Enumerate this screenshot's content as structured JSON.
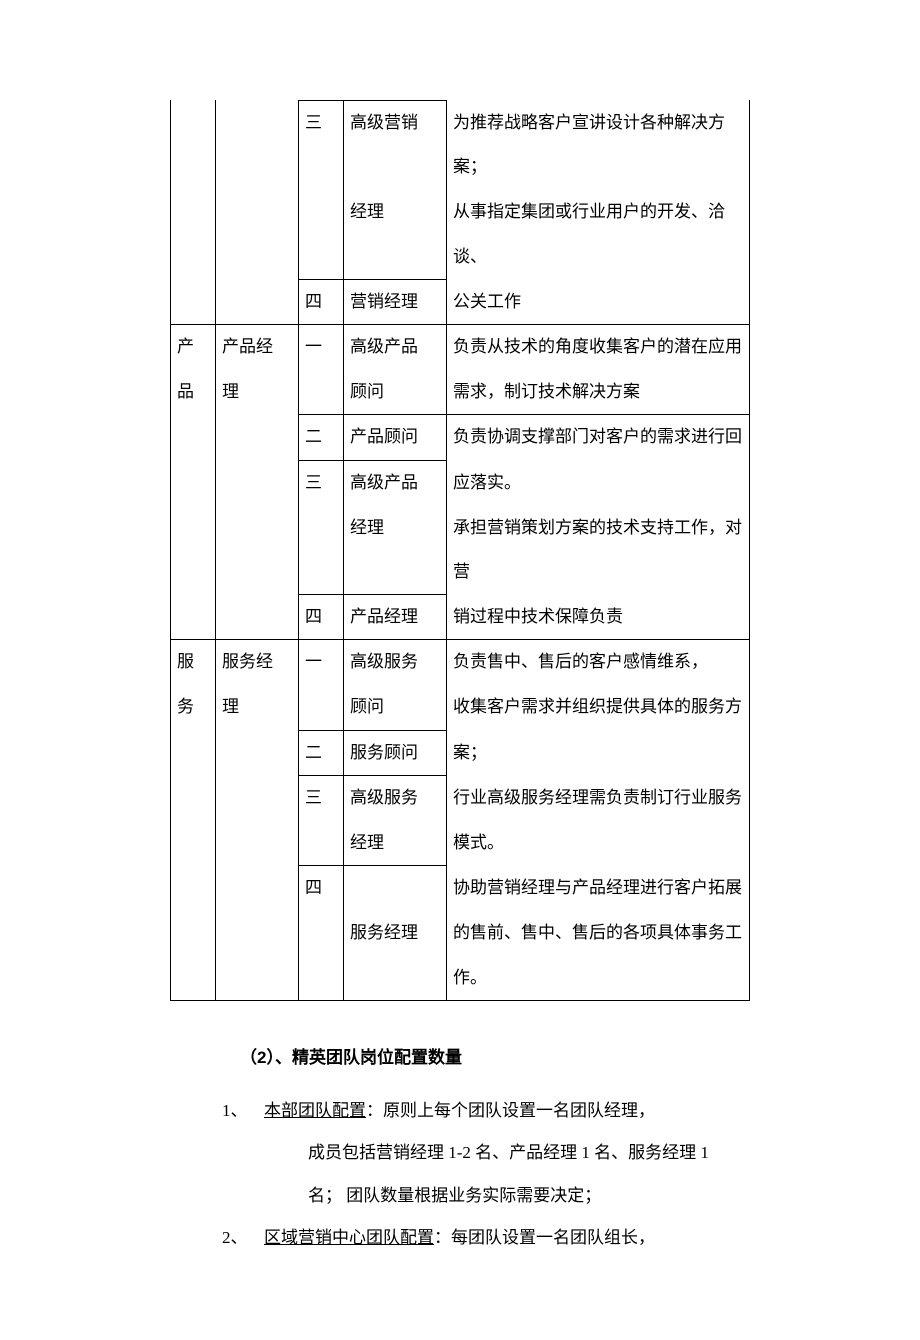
{
  "table": {
    "group_blank": "",
    "r1": {
      "level": "三",
      "title": "高级营销",
      "desc": "为推荐战略客户宣讲设计各种解决方案；"
    },
    "r1b": {
      "title_b": "经理",
      "desc_b": "从事指定集团或行业用户的开发、洽谈、"
    },
    "r2": {
      "level": "四",
      "title": "营销经理",
      "desc": "公关工作"
    },
    "g2": {
      "cat": "产",
      "role": "产品经",
      "level": "一",
      "title": "高级产品",
      "desc": "负责从技术的角度收集客户的潜在应用"
    },
    "g2b": {
      "cat_b": "品",
      "role_b": "理",
      "title_b": "顾问",
      "desc_b": "需求，制订技术解决方案"
    },
    "g2r2": {
      "level": "二",
      "title": "产品顾问",
      "desc": "负责协调支撑部门对客户的需求进行回"
    },
    "g2r3": {
      "level": "三",
      "title": "高级产品",
      "desc": "应落实。"
    },
    "g2r3b": {
      "title_b": "经理",
      "desc_b": "承担营销策划方案的技术支持工作，对营"
    },
    "g2r4": {
      "level": "四",
      "title": "产品经理",
      "desc": "销过程中技术保障负责"
    },
    "g3": {
      "cat": "服",
      "role": "服务经",
      "level": "一",
      "title": "高级服务",
      "desc": "负责售中、售后的客户感情维系，"
    },
    "g3b": {
      "cat_b": "务",
      "role_b": "理",
      "title_b": "顾问",
      "desc_b": "收集客户需求并组织提供具体的服务方"
    },
    "g3r2": {
      "level": "二",
      "title": "服务顾问",
      "desc": "案；"
    },
    "g3r3": {
      "level": "三",
      "title": "高级服务",
      "desc": "行业高级服务经理需负责制订行业服务"
    },
    "g3r3b": {
      "title_b": "经理",
      "desc_b": "模式。"
    },
    "g3r4": {
      "level": "四",
      "title": "服务经理",
      "desc": "协助营销经理与产品经理进行客户拓展",
      "desc_b": "的售前、售中、售后的各项具体事务工作。"
    }
  },
  "heading2": "（2）、精英团队岗位配置数量",
  "list": {
    "n1": "1、",
    "i1_lead": "本部团队配置",
    "i1_rest": "：原则上每个团队设置一名团队经理，",
    "i1_c1": "成员包括营销经理 1-2 名、产品经理 1 名、服务经理 1",
    "i1_c2": "名； 团队数量根据业务实际需要决定；",
    "n2": "2、",
    "i2_lead": "区域营销中心团队配置",
    "i2_rest": "：每团队设置一名团队组长，"
  }
}
